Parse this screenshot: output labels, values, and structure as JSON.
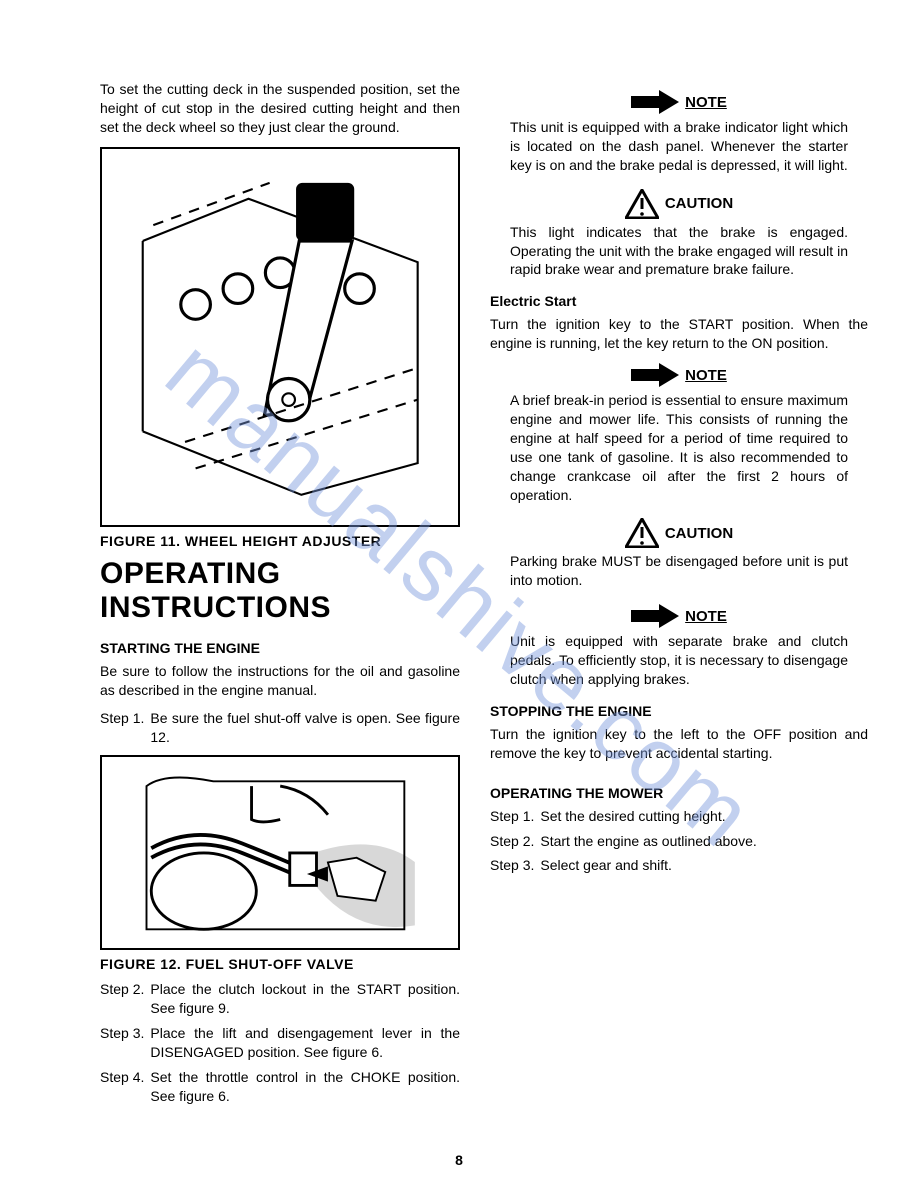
{
  "page_number": "8",
  "watermark_text": "manualshive.com",
  "colors": {
    "text": "#000000",
    "background": "#ffffff",
    "watermark": "rgba(120,150,220,0.45)",
    "figure_border": "#000000"
  },
  "left": {
    "intro": "To set the cutting deck in the suspended position, set the height of cut stop in the desired cutting height and then set the deck wheel so they just clear the ground.",
    "figure1_caption": "FIGURE 11. WHEEL HEIGHT ADJUSTER",
    "section_title_1": "OPERATING",
    "section_title_2": "INSTRUCTIONS",
    "starting_head": "STARTING THE ENGINE",
    "starting_intro": "Be sure to follow the instructions for the oil and gasoline as described in the engine manual.",
    "steps_a": [
      {
        "label": "Step 1.",
        "text": "Be sure the fuel shut-off valve is open. See figure 12."
      }
    ],
    "figure2_caption": "FIGURE 12. FUEL SHUT-OFF VALVE",
    "steps_b": [
      {
        "label": "Step 2.",
        "text": "Place the clutch lockout in the START position. See figure 9."
      },
      {
        "label": "Step 3.",
        "text": "Place the lift and disengagement lever in the DISENGAGED position. See figure 6."
      },
      {
        "label": "Step 4.",
        "text": "Set the throttle control in the CHOKE position. See figure 6."
      }
    ]
  },
  "right": {
    "note1_title": "NOTE",
    "note1_body": "This unit is equipped with a brake indicator light which is located on the dash panel. Whenever the starter key is on and the brake pedal is depressed, it will light.",
    "caution1_title": "CAUTION",
    "caution1_body": "This light indicates that the brake is engaged. Operating the unit with the brake engaged will result in rapid brake wear and premature brake failure.",
    "electric_head": "Electric Start",
    "electric_body": "Turn the ignition key to the START position. When the engine is running, let the key return to the ON position.",
    "note2_title": "NOTE",
    "note2_body": "A brief break-in period is essential to ensure maximum engine and mower life. This consists of running the engine at half speed for a period of time required to use one tank of gasoline. It is also recommended to change crankcase oil after the first 2 hours of operation.",
    "caution2_title": "CAUTION",
    "caution2_body": "Parking brake MUST be disengaged before unit is put into motion.",
    "note3_title": "NOTE",
    "note3_body": "Unit is equipped with separate brake and clutch pedals. To efficiently stop, it is necessary to disengage clutch when applying brakes.",
    "stopping_head": "STOPPING THE ENGINE",
    "stopping_body": "Turn the ignition key to the left to the OFF position and remove the key to prevent accidental starting.",
    "operating_head": "OPERATING THE MOWER",
    "op_steps": [
      {
        "label": "Step 1.",
        "text": "Set the desired cutting height."
      },
      {
        "label": "Step 2.",
        "text": "Start the engine as outlined above."
      },
      {
        "label": "Step 3.",
        "text": "Select gear and shift."
      }
    ]
  }
}
